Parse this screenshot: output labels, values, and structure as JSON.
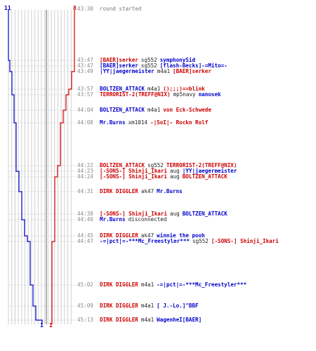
{
  "colors": {
    "red": "#cc0000",
    "blue": "#0000cc",
    "grey": "#8a8a8a",
    "grid": "#d0d0d0"
  },
  "team_counts": {
    "blue_start": "11",
    "red_start": "8",
    "blue_end": "1",
    "red_end": "1"
  },
  "events": [
    {
      "time": "43:30",
      "parts": [
        {
          "text": "round started",
          "c": "grey"
        }
      ]
    },
    {
      "time": "43:47",
      "parts": [
        {
          "text": "[BAER]serker",
          "c": "red"
        },
        {
          "text": "sg552",
          "c": "dark"
        },
        {
          "text": "symphonySid",
          "c": "blue"
        }
      ]
    },
    {
      "time": "43:47",
      "parts": [
        {
          "text": "[BAER]serker",
          "c": "blue"
        },
        {
          "text": "sg552",
          "c": "dark"
        },
        {
          "text": "[flash-Becks]-=Mito=-",
          "c": "blue"
        }
      ]
    },
    {
      "time": "43:49",
      "parts": [
        {
          "text": "|YY|jaegermeister",
          "c": "blue"
        },
        {
          "text": "m4a1",
          "c": "dark"
        },
        {
          "text": "[BAER]serker",
          "c": "red"
        }
      ]
    },
    {
      "time": "43:57",
      "parts": [
        {
          "text": "BOLTZEN_ATTACK",
          "c": "blue"
        },
        {
          "text": "m4a1",
          "c": "dark"
        },
        {
          "text": "();;;)==blink",
          "c": "red"
        }
      ]
    },
    {
      "time": "43:57",
      "parts": [
        {
          "text": "TERRORIST-2(TREFF@NIX)",
          "c": "red"
        },
        {
          "text": "mp5navy",
          "c": "dark"
        },
        {
          "text": "nanosek",
          "c": "blue"
        }
      ]
    },
    {
      "time": "44:04",
      "parts": [
        {
          "text": "BOLTZEN_ATTACK",
          "c": "blue"
        },
        {
          "text": "m4a1",
          "c": "dark"
        },
        {
          "text": "von Eck-Schwede",
          "c": "red"
        }
      ]
    },
    {
      "time": "44:08",
      "parts": [
        {
          "text": "Mr.Burns",
          "c": "blue"
        },
        {
          "text": "xm1014",
          "c": "dark"
        },
        {
          "text": "-|SoI|- Rockn Rolf",
          "c": "red"
        }
      ]
    },
    {
      "time": "44:22",
      "parts": [
        {
          "text": "BOLTZEN_ATTACK",
          "c": "red"
        },
        {
          "text": "sg552",
          "c": "dark"
        },
        {
          "text": "TERRORIST-2(TREFF@NIX)",
          "c": "red"
        }
      ]
    },
    {
      "time": "44:23",
      "parts": [
        {
          "text": "[-SONS-] Shinji_Ikari",
          "c": "red"
        },
        {
          "text": "aug",
          "c": "dark"
        },
        {
          "text": "|YY|jaegermeister",
          "c": "blue"
        }
      ]
    },
    {
      "time": "44:24",
      "parts": [
        {
          "text": "[-SONS-] Shinji_Ikari",
          "c": "red"
        },
        {
          "text": "aug",
          "c": "dark"
        },
        {
          "text": "BOLTZEN_ATTACK",
          "c": "red"
        }
      ]
    },
    {
      "time": "44:31",
      "parts": [
        {
          "text": "DIRK DIGGLER",
          "c": "red"
        },
        {
          "text": "ak47",
          "c": "dark"
        },
        {
          "text": "Mr.Burns",
          "c": "blue"
        }
      ]
    },
    {
      "time": "44:38",
      "parts": [
        {
          "text": "[-SONS-] Shinji_Ikari",
          "c": "red"
        },
        {
          "text": "aug",
          "c": "dark"
        },
        {
          "text": "BOLTZEN_ATTACK",
          "c": "blue"
        }
      ]
    },
    {
      "time": "44:40",
      "parts": [
        {
          "text": "Mr.Burns",
          "c": "blue"
        },
        {
          "text": "disconnected",
          "c": "dark"
        }
      ]
    },
    {
      "time": "44:45",
      "parts": [
        {
          "text": "DIRK DIGGLER",
          "c": "red"
        },
        {
          "text": "ak47",
          "c": "dark"
        },
        {
          "text": "winnie the pooh",
          "c": "blue"
        }
      ]
    },
    {
      "time": "44:47",
      "parts": [
        {
          "text": "-=|pct|=-***Mc_Freestyler***",
          "c": "blue"
        },
        {
          "text": "sg552",
          "c": "dark"
        },
        {
          "text": "[-SONS-] Shinji_Ikari",
          "c": "red"
        }
      ]
    },
    {
      "time": "45:02",
      "parts": [
        {
          "text": "DIRK DIGGLER",
          "c": "red"
        },
        {
          "text": "m4a1",
          "c": "dark"
        },
        {
          "text": "-=|pct|=-***Mc_Freestyler***",
          "c": "blue"
        }
      ]
    },
    {
      "time": "45:09",
      "parts": [
        {
          "text": "DIRK DIGGLER",
          "c": "red"
        },
        {
          "text": "m4a1",
          "c": "dark"
        },
        {
          "text": "[ J.-Lo.]\"BBF",
          "c": "blue"
        }
      ]
    },
    {
      "time": "45:13",
      "parts": [
        {
          "text": "DIRK DIGGLER",
          "c": "red"
        },
        {
          "text": "m4a1",
          "c": "dark"
        },
        {
          "text": "WagenheI[BAER]",
          "c": "blue"
        }
      ]
    }
  ]
}
